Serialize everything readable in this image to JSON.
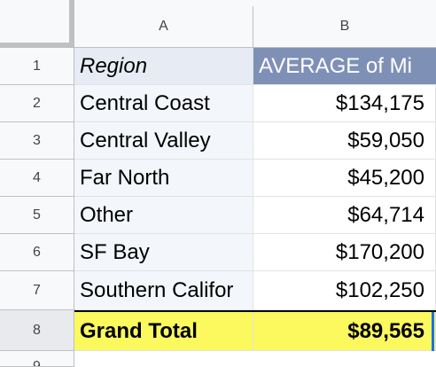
{
  "sheet": {
    "columns": [
      "A",
      "B"
    ],
    "row_numbers": [
      "1",
      "2",
      "3",
      "4",
      "5",
      "6",
      "7",
      "8",
      "9"
    ],
    "rows": [
      {
        "a": "Region",
        "b": "AVERAGE of Mi"
      },
      {
        "a": "Central Coast",
        "b": "$134,175"
      },
      {
        "a": "Central Valley",
        "b": "$59,050"
      },
      {
        "a": "Far North",
        "b": "$45,200"
      },
      {
        "a": "Other",
        "b": "$64,714"
      },
      {
        "a": "SF Bay",
        "b": "$170,200"
      },
      {
        "a": "Southern Califor",
        "b": "$102,250"
      },
      {
        "a": "Grand Total",
        "b": "$89,565"
      }
    ]
  },
  "colors": {
    "header_region_bg": "#e7ebf3",
    "header_average_bg": "#7f90b6",
    "grand_total_bg": "#fbf95d",
    "selection": "#1a73e8"
  }
}
